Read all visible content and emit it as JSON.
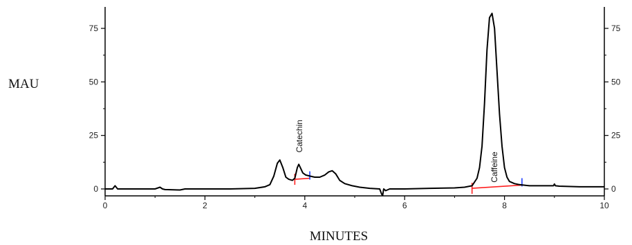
{
  "chart_data": {
    "type": "line",
    "xlabel": "MINUTES",
    "ylabel": "MAU",
    "xlim": [
      0,
      10
    ],
    "ylim": [
      -3,
      85
    ],
    "x_ticks": [
      0,
      2,
      4,
      6,
      8,
      10
    ],
    "y_ticks": [
      0,
      25,
      50,
      75
    ],
    "y_axis_right_mirror": true,
    "grid": false,
    "series": [
      {
        "color": "#000000",
        "x": [
          0,
          0.15,
          0.2,
          0.25,
          0.3,
          0.6,
          1.0,
          1.1,
          1.15,
          1.2,
          1.5,
          1.6,
          1.8,
          2.0,
          2.5,
          3.0,
          3.2,
          3.3,
          3.38,
          3.45,
          3.5,
          3.56,
          3.62,
          3.68,
          3.75,
          3.8,
          3.85,
          3.88,
          3.92,
          3.96,
          4.02,
          4.1,
          4.2,
          4.3,
          4.4,
          4.48,
          4.55,
          4.62,
          4.7,
          4.8,
          4.95,
          5.1,
          5.3,
          5.5,
          5.54,
          5.56,
          5.58,
          5.62,
          5.7,
          6.0,
          6.5,
          7.0,
          7.2,
          7.35,
          7.45,
          7.5,
          7.55,
          7.6,
          7.65,
          7.7,
          7.75,
          7.8,
          7.85,
          7.9,
          7.95,
          8.0,
          8.05,
          8.1,
          8.2,
          8.3,
          8.5,
          8.8,
          8.98,
          9.0,
          9.02,
          9.1,
          9.5,
          10.0
        ],
        "values": [
          0,
          0,
          1.5,
          0,
          0,
          0,
          0,
          0.8,
          0,
          -0.3,
          -0.5,
          0,
          0,
          0,
          0,
          0.3,
          1.0,
          2.0,
          6.0,
          12.0,
          13.5,
          10.0,
          5.5,
          4.5,
          4.0,
          5.0,
          10.0,
          11.5,
          9.5,
          7.5,
          6.5,
          6.0,
          5.5,
          5.5,
          6.5,
          8.0,
          8.5,
          7.0,
          4.0,
          2.5,
          1.5,
          0.8,
          0.3,
          0,
          -2.5,
          -3.0,
          0,
          -0.8,
          0,
          0,
          0.3,
          0.5,
          0.8,
          1.5,
          5.0,
          10.0,
          20.0,
          40.0,
          65.0,
          80.0,
          82.0,
          75.0,
          55.0,
          35.0,
          20.0,
          10.0,
          5.5,
          3.5,
          2.5,
          2.0,
          1.5,
          1.5,
          1.5,
          2.3,
          1.5,
          1.3,
          1.0,
          1.0
        ]
      }
    ],
    "annotations": [
      {
        "text": "Catechin",
        "x": 3.95,
        "y": 17,
        "rotation": -90
      },
      {
        "text": "Caffeine",
        "x": 7.85,
        "y": 3,
        "rotation": -90
      }
    ],
    "baselines": [
      {
        "color": "#ff2020",
        "end_marker_color": "#2040ff",
        "x": [
          3.8,
          4.1
        ],
        "y": [
          4.5,
          5.0
        ]
      },
      {
        "color": "#ff2020",
        "end_marker_color": "#2040ff",
        "x": [
          7.35,
          8.35
        ],
        "y": [
          0.3,
          1.8
        ]
      }
    ]
  }
}
